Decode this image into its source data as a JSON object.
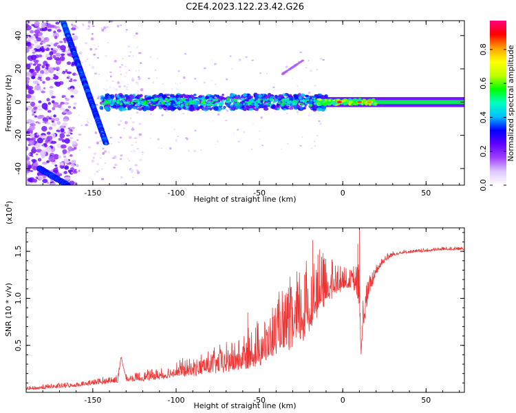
{
  "title": "C2E4.2023.122.23.42.G26",
  "chart_data": [
    {
      "type": "heatmap",
      "xlabel": "Height of straight line (km)",
      "ylabel": "Frequency (Hz)",
      "xlim": [
        -190,
        73
      ],
      "ylim": [
        -50,
        49
      ],
      "xticks": [
        -150,
        -100,
        -50,
        0,
        50
      ],
      "yticks": [
        -40,
        -20,
        0,
        20,
        40
      ],
      "colorbar": {
        "label": "Normalized spectral amplitude",
        "range": [
          0,
          0.97
        ],
        "ticks": [
          0.0,
          0.2,
          0.4,
          0.6,
          0.8
        ],
        "colors": [
          "#ffffff",
          "#e0c8ff",
          "#a040ff",
          "#6000ff",
          "#0000ff",
          "#00c0ff",
          "#00ffc0",
          "#00ff00",
          "#c0ff00",
          "#ffff00",
          "#ffa000",
          "#ff0000",
          "#ff0080"
        ]
      },
      "features": [
        {
          "kind": "diagonal-band",
          "x": [
            -168,
            -142
          ],
          "y": [
            49,
            -25
          ],
          "amplitude": 0.4
        },
        {
          "kind": "diagonal-band",
          "x": [
            -182,
            -165
          ],
          "y": [
            -40,
            -50
          ],
          "amplitude": 0.3
        },
        {
          "kind": "horizontal-band",
          "x": [
            -145,
            73
          ],
          "y": 0,
          "amplitude": 0.4
        },
        {
          "kind": "peak",
          "x": -2,
          "y": 0,
          "amplitude": 0.95
        },
        {
          "kind": "peak",
          "x": 10,
          "y": 0,
          "amplitude": 0.9
        },
        {
          "kind": "peak",
          "x": 16,
          "y": 0,
          "amplitude": 0.85
        },
        {
          "kind": "faint-streak",
          "x": [
            -36,
            -24
          ],
          "y": [
            17,
            25
          ],
          "amplitude": 0.15
        }
      ]
    },
    {
      "type": "line",
      "xlabel": "Height of straight line (km)",
      "ylabel": "SNR (10 * v/v)",
      "y_multiplier": "(x10",
      "y_multiplier_exp": "4",
      "y_multiplier_close": ")",
      "xlim": [
        -190,
        73
      ],
      "ylim": [
        0,
        1.75
      ],
      "xticks": [
        -150,
        -100,
        -50,
        0,
        50
      ],
      "yticks": [
        0.5,
        1.0,
        1.5
      ],
      "yticklabels": [
        "0.5",
        "1.0",
        "1.5"
      ],
      "series": [
        {
          "color": "#ee3333",
          "x": [
            -190,
            -175,
            -160,
            -145,
            -135,
            -133,
            -130,
            -120,
            -110,
            -100,
            -90,
            -80,
            -70,
            -60,
            -55,
            -50,
            -45,
            -40,
            -35,
            -30,
            -25,
            -20,
            -18,
            -15,
            -12,
            -10,
            -5,
            0,
            5,
            8,
            10,
            11,
            12,
            15,
            20,
            25,
            30,
            35,
            40,
            50,
            55,
            60,
            65,
            70,
            73
          ],
          "y": [
            0.03,
            0.05,
            0.07,
            0.1,
            0.12,
            0.38,
            0.13,
            0.14,
            0.16,
            0.19,
            0.21,
            0.24,
            0.27,
            0.3,
            0.34,
            0.38,
            0.42,
            0.5,
            0.55,
            0.6,
            0.67,
            0.75,
            0.85,
            0.92,
            0.98,
            1.03,
            1.08,
            1.13,
            1.15,
            1.1,
            0.95,
            0.4,
            0.7,
            1.0,
            1.28,
            1.4,
            1.46,
            1.48,
            1.49,
            1.5,
            1.51,
            1.52,
            1.52,
            1.52,
            1.52
          ],
          "noise": [
            0.02,
            0.03,
            0.03,
            0.04,
            0.05,
            0.0,
            0.05,
            0.06,
            0.07,
            0.1,
            0.12,
            0.14,
            0.18,
            0.2,
            0.25,
            0.28,
            0.3,
            0.35,
            0.38,
            0.42,
            0.45,
            0.45,
            0.42,
            0.4,
            0.35,
            0.3,
            0.22,
            0.15,
            0.12,
            0.2,
            0.3,
            0.0,
            0.25,
            0.15,
            0.08,
            0.05,
            0.03,
            0.03,
            0.02,
            0.02,
            0.02,
            0.02,
            0.02,
            0.02,
            0.02
          ]
        }
      ]
    }
  ]
}
